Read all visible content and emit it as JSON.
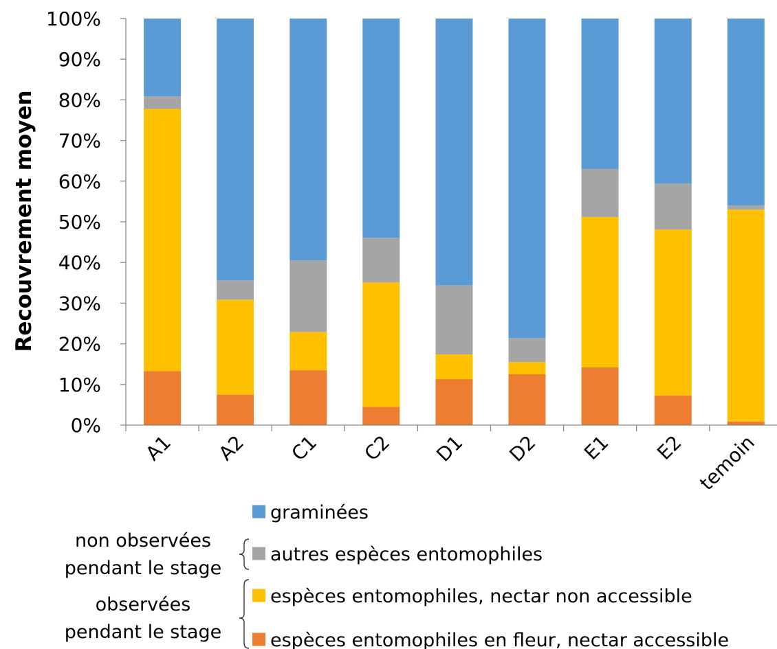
{
  "chart_data": {
    "type": "bar",
    "stacked": true,
    "ylabel": "Recouvrement moyen",
    "xlabel": "",
    "ylim": [
      0,
      100
    ],
    "yticks": [
      "0%",
      "10%",
      "20%",
      "30%",
      "40%",
      "50%",
      "60%",
      "70%",
      "80%",
      "90%",
      "100%"
    ],
    "categories": [
      "A1",
      "A2",
      "C1",
      "C2",
      "D1",
      "D2",
      "E1",
      "E2",
      "temoin"
    ],
    "series": [
      {
        "name": "espèces entomophiles en fleur, nectar accessible",
        "color": "#ED7D31",
        "values": [
          13.3,
          7.5,
          13.5,
          4.5,
          11.3,
          12.5,
          14.2,
          7.3,
          0.9
        ]
      },
      {
        "name": "espèces entomophiles, nectar non accessible",
        "color": "#FFC000",
        "values": [
          64.5,
          23.3,
          9.4,
          30.6,
          6.1,
          3.0,
          37.0,
          40.8,
          52.1
        ]
      },
      {
        "name": "autres espèces entomophiles",
        "color": "#A5A5A5",
        "values": [
          3.1,
          4.8,
          17.6,
          11.0,
          17.0,
          5.9,
          11.8,
          11.3,
          1.0
        ]
      },
      {
        "name": "graminées",
        "color": "#5B9BD5",
        "values": [
          19.1,
          64.4,
          59.5,
          53.9,
          65.6,
          78.6,
          37.0,
          40.6,
          46.0
        ]
      }
    ],
    "legend": {
      "placement": "bottom",
      "order": [
        3,
        2,
        1,
        0
      ],
      "groups": [
        {
          "label_lines": [
            "non observées",
            "pendant le stage"
          ],
          "series": [
            2
          ]
        },
        {
          "label_lines": [
            "observées",
            "pendant le stage"
          ],
          "series": [
            1,
            0
          ]
        }
      ]
    },
    "grid": false
  }
}
